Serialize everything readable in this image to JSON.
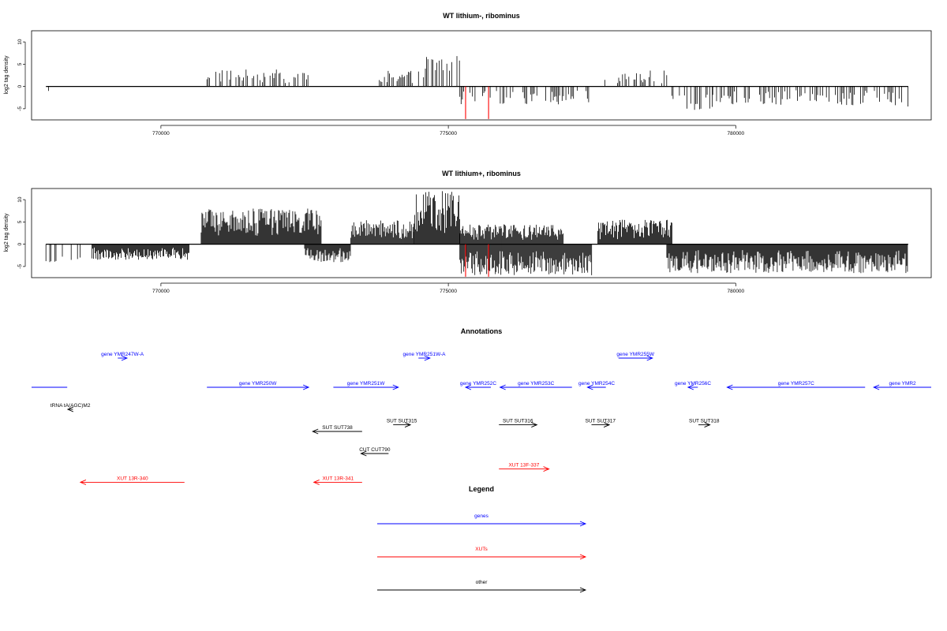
{
  "chart_data": [
    {
      "type": "bar",
      "title": "WT lithium-, ribominus",
      "ylabel": "log2 tag density",
      "xlabel": "",
      "xlim": [
        767750,
        783400
      ],
      "ylim": [
        -7.5,
        12.5
      ],
      "xticks": [
        770000,
        775000,
        780000
      ],
      "yticks": [
        -5,
        0,
        5,
        10
      ],
      "grid": false,
      "legend": "none",
      "colors": {
        "signal": "#000000",
        "highlight": "#ff0000"
      },
      "highlights": [
        {
          "x": 775300,
          "value": -7.3
        },
        {
          "x": 775700,
          "value": -7.3
        }
      ],
      "positive_regions": [
        {
          "from": 770800,
          "to": 772600,
          "max": 3.8
        },
        {
          "from": 773800,
          "to": 774600,
          "max": 3.5
        },
        {
          "from": 774600,
          "to": 775200,
          "max": 7.0
        },
        {
          "from": 777700,
          "to": 778800,
          "max": 3.6
        }
      ],
      "negative_regions": [
        {
          "from": 768000,
          "to": 768050,
          "min": -3.2
        },
        {
          "from": 775200,
          "to": 777500,
          "min": -4.0
        },
        {
          "from": 778800,
          "to": 779600,
          "min": -5.5
        },
        {
          "from": 779600,
          "to": 782600,
          "min": -4.2
        },
        {
          "from": 782600,
          "to": 783000,
          "min": -4.5
        }
      ]
    },
    {
      "type": "bar",
      "title": "WT lithium+, ribominus",
      "ylabel": "log2 tag density",
      "xlabel": "",
      "xlim": [
        767750,
        783400
      ],
      "ylim": [
        -7.5,
        12.5
      ],
      "xticks": [
        770000,
        775000,
        780000
      ],
      "yticks": [
        -5,
        0,
        5,
        10
      ],
      "grid": false,
      "legend": "none",
      "colors": {
        "signal": "#000000",
        "highlight": "#ff0000"
      },
      "highlights": [
        {
          "x": 775300,
          "value": -7.3
        },
        {
          "x": 775700,
          "value": -7.3
        }
      ],
      "positive_regions": [
        {
          "from": 770700,
          "to": 772800,
          "max": 8.0
        },
        {
          "from": 773300,
          "to": 774400,
          "max": 5.5
        },
        {
          "from": 774400,
          "to": 775200,
          "max": 12.0
        },
        {
          "from": 775200,
          "to": 777000,
          "max": 4.5
        },
        {
          "from": 777600,
          "to": 778900,
          "max": 5.5
        }
      ],
      "negative_regions": [
        {
          "from": 768000,
          "to": 768600,
          "min": -4.5
        },
        {
          "from": 768800,
          "to": 770500,
          "min": -3.5
        },
        {
          "from": 772500,
          "to": 773300,
          "min": -4.0
        },
        {
          "from": 775200,
          "to": 777500,
          "min": -7.0
        },
        {
          "from": 778800,
          "to": 783000,
          "min": -6.5
        }
      ]
    }
  ],
  "annotations": {
    "title": "Annotations",
    "colors": {
      "gene": "#0000ff",
      "xut": "#ff0000",
      "other": "#000000"
    },
    "features": [
      {
        "label": "",
        "kind": "gene",
        "start": 767750,
        "end": 768370,
        "dir": "none",
        "row": 1
      },
      {
        "label": "gene YMR247W-A",
        "kind": "gene",
        "start": 769250,
        "end": 769410,
        "dir": "right",
        "row": 0
      },
      {
        "label": "gene YMR250W",
        "kind": "gene",
        "start": 770800,
        "end": 772570,
        "dir": "right",
        "row": 1
      },
      {
        "label": "gene YMR251W",
        "kind": "gene",
        "start": 773000,
        "end": 774130,
        "dir": "right",
        "row": 1
      },
      {
        "label": "gene YMR251W-A",
        "kind": "gene",
        "start": 774480,
        "end": 774680,
        "dir": "right",
        "row": 0
      },
      {
        "label": "gene YMR252C",
        "kind": "gene",
        "start": 775300,
        "end": 775740,
        "dir": "left",
        "row": 1
      },
      {
        "label": "gene YMR253C",
        "kind": "gene",
        "start": 775900,
        "end": 777150,
        "dir": "left",
        "row": 1
      },
      {
        "label": "gene YMR254C",
        "kind": "gene",
        "start": 777420,
        "end": 777740,
        "dir": "left",
        "row": 1
      },
      {
        "label": "gene YMR255W",
        "kind": "gene",
        "start": 777960,
        "end": 778550,
        "dir": "right",
        "row": 0
      },
      {
        "label": "gene YMR256C",
        "kind": "gene",
        "start": 779170,
        "end": 779340,
        "dir": "left",
        "row": 1
      },
      {
        "label": "gene YMR257C",
        "kind": "gene",
        "start": 779850,
        "end": 782250,
        "dir": "left",
        "row": 1
      },
      {
        "label": "gene YMR2",
        "kind": "gene",
        "start": 782400,
        "end": 783400,
        "dir": "left",
        "row": 1
      },
      {
        "label": "tRNA tA(AGC)M2",
        "kind": "other",
        "start": 768380,
        "end": 768470,
        "dir": "left",
        "row": 2
      },
      {
        "label": "SUT SUT738",
        "kind": "other",
        "start": 772640,
        "end": 773500,
        "dir": "left",
        "row": 3
      },
      {
        "label": "SUT SUT315",
        "kind": "other",
        "start": 774040,
        "end": 774340,
        "dir": "right",
        "row": 2.7
      },
      {
        "label": "SUT SUT316",
        "kind": "other",
        "start": 775880,
        "end": 776540,
        "dir": "right",
        "row": 2.7
      },
      {
        "label": "SUT SUT317",
        "kind": "other",
        "start": 777490,
        "end": 777800,
        "dir": "right",
        "row": 2.7
      },
      {
        "label": "SUT SUT318",
        "kind": "other",
        "start": 779350,
        "end": 779550,
        "dir": "right",
        "row": 2.7
      },
      {
        "label": "CUT CUT790",
        "kind": "other",
        "start": 773480,
        "end": 773960,
        "dir": "left",
        "row": 4
      },
      {
        "label": "XUT 13R-340",
        "kind": "xut",
        "start": 768600,
        "end": 770410,
        "dir": "left",
        "row": 5.3
      },
      {
        "label": "XUT 13R-341",
        "kind": "xut",
        "start": 772660,
        "end": 773500,
        "dir": "left",
        "row": 5.3
      },
      {
        "label": "XUT 13F-337",
        "kind": "xut",
        "start": 775880,
        "end": 776750,
        "dir": "right",
        "row": 4.7
      }
    ]
  },
  "legend": {
    "title": "Legend",
    "items": [
      {
        "label": "genes",
        "color": "#0000ff"
      },
      {
        "label": "XUTs",
        "color": "#ff0000"
      },
      {
        "label": "other",
        "color": "#000000"
      }
    ]
  }
}
